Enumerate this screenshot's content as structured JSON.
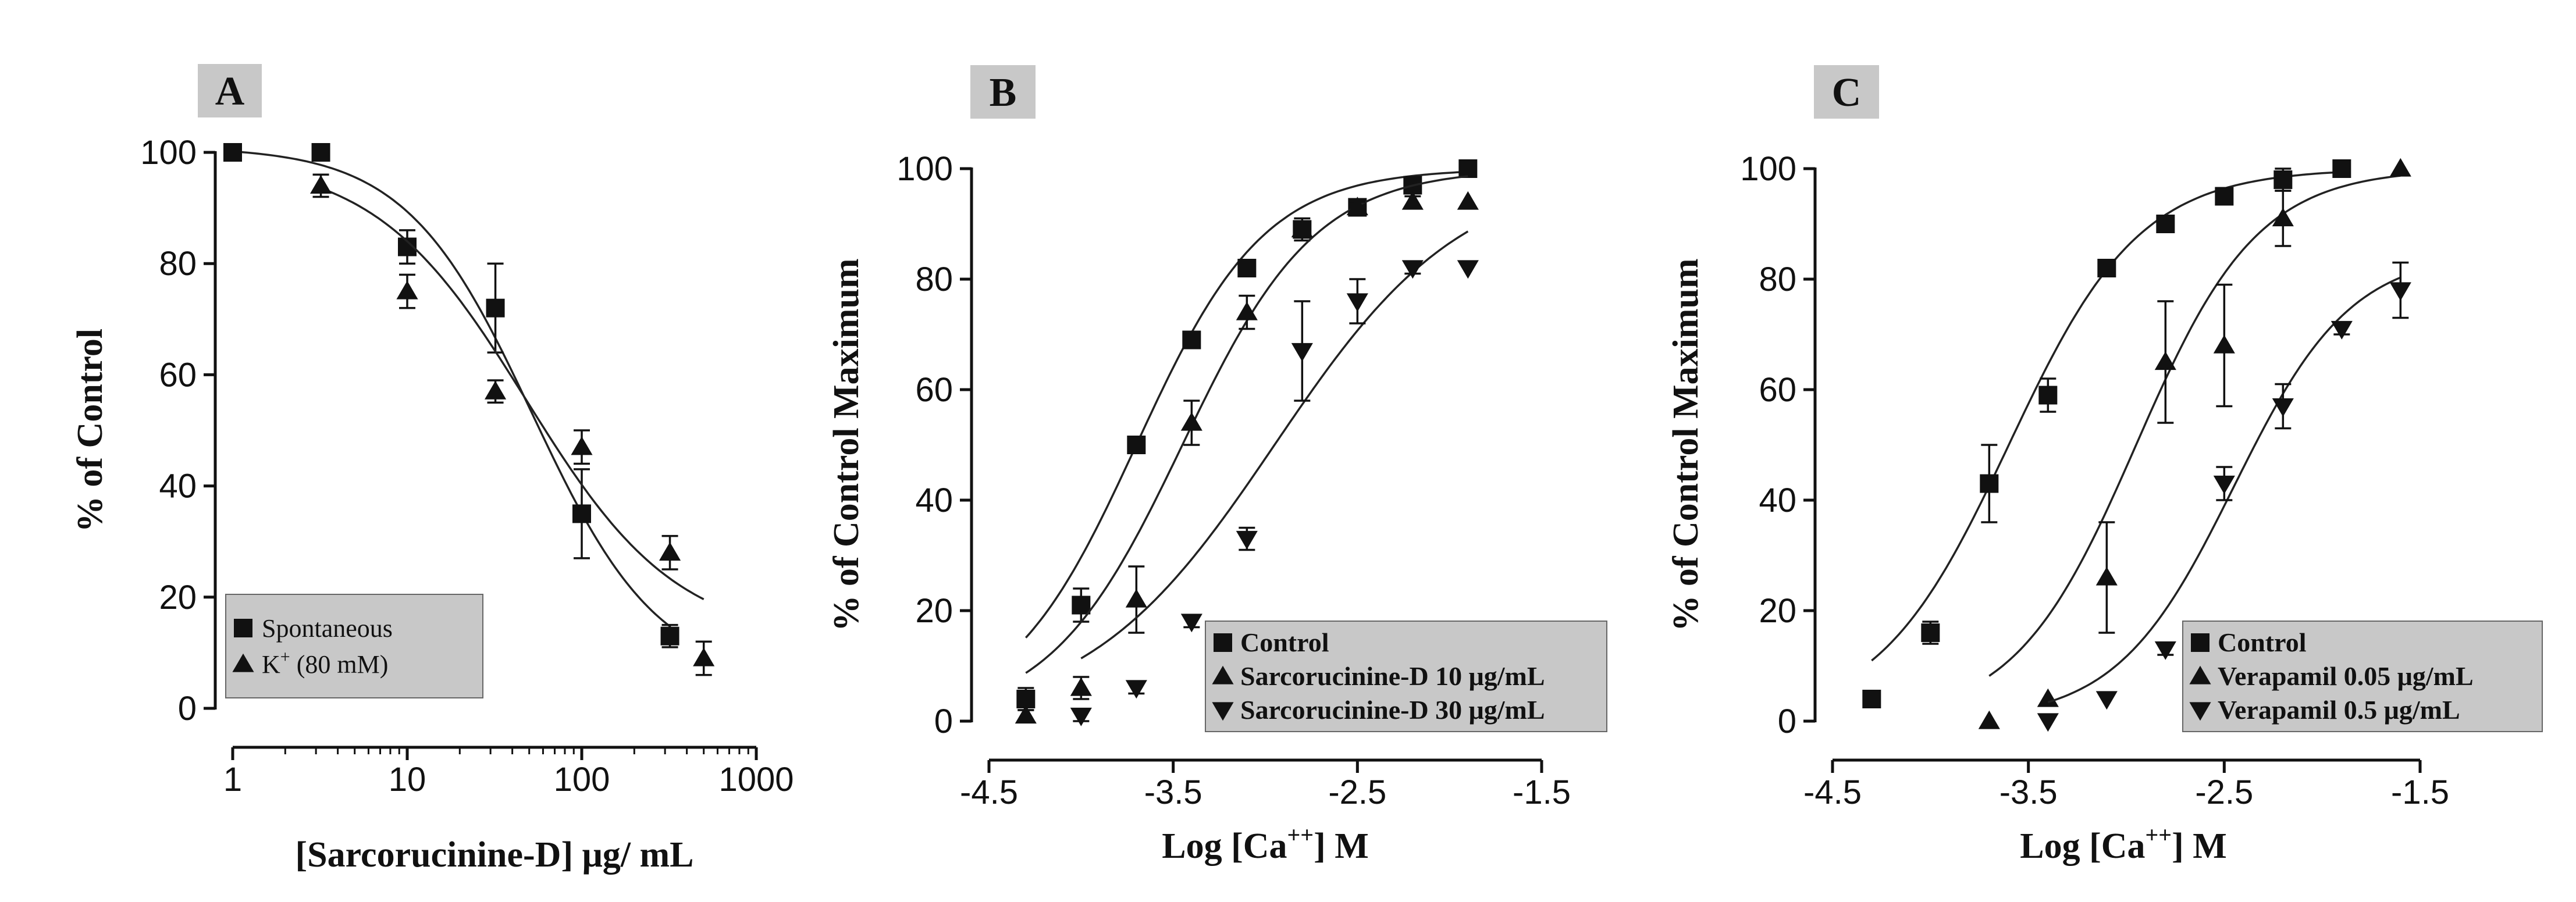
{
  "chart_data": [
    {
      "type": "scatter",
      "panel_label": "A",
      "xscale": "log",
      "xlim": [
        1,
        1000
      ],
      "ylim": [
        0,
        100
      ],
      "xticks": [
        1,
        10,
        100,
        1000
      ],
      "xtick_labels": [
        "1",
        "10",
        "100",
        "1000"
      ],
      "yticks": [
        0,
        20,
        40,
        60,
        80,
        100
      ],
      "ytick_labels": [
        "0",
        "20",
        "40",
        "60",
        "80",
        "100"
      ],
      "xlabel": "[Sarcorucinine-D] μg/ mL",
      "ylabel": "% of Control",
      "legend_position": "bottom-left",
      "series": [
        {
          "name": "Spontaneous",
          "marker": "square",
          "x": [
            1,
            3.2,
            10,
            32,
            100,
            320
          ],
          "y": [
            100,
            100,
            83,
            72,
            35,
            13
          ],
          "err": [
            0,
            0,
            3,
            8,
            8,
            2
          ],
          "fit": {
            "bottom": 5,
            "top": 101,
            "ec50": 52,
            "hill": 1.2
          }
        },
        {
          "name": "K",
          "name_sup": "+",
          "name_rest": " (80 mM)",
          "marker": "triangle-up",
          "x": [
            3.2,
            10,
            32,
            100,
            320,
            500
          ],
          "y": [
            94,
            75,
            57,
            47,
            28,
            9
          ],
          "err": [
            2,
            3,
            2,
            3,
            3,
            3
          ],
          "fit": {
            "bottom": 12,
            "top": 99,
            "ec50": 48,
            "hill": 1.0
          }
        }
      ]
    },
    {
      "type": "scatter",
      "panel_label": "B",
      "xlim": [
        -4.5,
        -1.5
      ],
      "ylim": [
        0,
        100
      ],
      "xticks": [
        -4.5,
        -3.5,
        -2.5,
        -1.5
      ],
      "xtick_labels": [
        "-4.5",
        "-3.5",
        "-2.5",
        "-1.5"
      ],
      "yticks": [
        0,
        20,
        40,
        60,
        80,
        100
      ],
      "ytick_labels": [
        "0",
        "20",
        "40",
        "60",
        "80",
        "100"
      ],
      "xlabel_main": "Log [Ca",
      "xlabel_sup": "++",
      "xlabel_rest": "] M",
      "ylabel": "% of Control Maximum",
      "legend_position": "bottom-right",
      "series": [
        {
          "name": "Control",
          "marker": "square",
          "x": [
            -4.3,
            -4.0,
            -3.7,
            -3.4,
            -3.1,
            -2.8,
            -2.5,
            -2.2,
            -1.9
          ],
          "y": [
            4,
            21,
            50,
            69,
            82,
            89,
            93,
            97,
            100
          ],
          "err": [
            2,
            3,
            1,
            1,
            1,
            2,
            1,
            1,
            0
          ],
          "fit": {
            "bottom": 0,
            "top": 100,
            "logec50": -3.7,
            "hill": 1.25
          }
        },
        {
          "name": "Sarcorucinine-D 10 μg/mL",
          "marker": "triangle-up",
          "x": [
            -4.3,
            -4.0,
            -3.7,
            -3.4,
            -3.1,
            -2.8,
            -2.5,
            -2.2,
            -1.9
          ],
          "y": [
            1,
            6,
            22,
            54,
            74,
            89,
            93,
            94,
            94
          ],
          "err": [
            1,
            2,
            6,
            4,
            3,
            1,
            1,
            1,
            0
          ],
          "fit": {
            "bottom": 0,
            "top": 100,
            "logec50": -3.45,
            "hill": 1.2
          }
        },
        {
          "name": "Sarcorucinine-D 30 μg/mL",
          "marker": "triangle-down",
          "x": [
            -4.0,
            -3.7,
            -3.4,
            -3.1,
            -2.8,
            -2.5,
            -2.2,
            -1.9
          ],
          "y": [
            1,
            6,
            18,
            33,
            67,
            76,
            82,
            82
          ],
          "err": [
            1,
            1,
            1,
            2,
            9,
            4,
            1,
            0
          ],
          "fit": {
            "bottom": 0,
            "top": 100,
            "logec50": -2.95,
            "hill": 0.85
          }
        }
      ]
    },
    {
      "type": "scatter",
      "panel_label": "C",
      "xlim": [
        -4.5,
        -1.5
      ],
      "ylim": [
        0,
        100
      ],
      "xticks": [
        -4.5,
        -3.5,
        -2.5,
        -1.5
      ],
      "xtick_labels": [
        "-4.5",
        "-3.5",
        "-2.5",
        "-1.5"
      ],
      "yticks": [
        0,
        20,
        40,
        60,
        80,
        100
      ],
      "ytick_labels": [
        "0",
        "20",
        "40",
        "60",
        "80",
        "100"
      ],
      "xlabel_main": "Log [Ca",
      "xlabel_sup": "++",
      "xlabel_rest": "] M",
      "ylabel": "% of Control Maximum",
      "legend_position": "bottom-right",
      "series": [
        {
          "name": "Control",
          "marker": "square",
          "x": [
            -4.3,
            -4.0,
            -3.7,
            -3.4,
            -3.1,
            -2.8,
            -2.5,
            -2.2,
            -1.9
          ],
          "y": [
            4,
            16,
            43,
            59,
            82,
            90,
            95,
            98,
            100
          ],
          "err": [
            1,
            2,
            7,
            3,
            1,
            1,
            1,
            2,
            0
          ],
          "fit": {
            "bottom": 0,
            "top": 100,
            "logec50": -3.6,
            "hill": 1.3
          }
        },
        {
          "name": "Verapamil 0.05 μg/mL",
          "marker": "triangle-up",
          "x": [
            -3.7,
            -3.4,
            -3.1,
            -2.8,
            -2.5,
            -2.2,
            -1.6
          ],
          "y": [
            0,
            4,
            26,
            65,
            68,
            91,
            100
          ],
          "err": [
            0,
            0,
            10,
            11,
            11,
            5,
            0
          ],
          "fit": {
            "bottom": 0,
            "top": 100,
            "logec50": -2.95,
            "hill": 1.4
          }
        },
        {
          "name": "Verapamil 0.5 μg/mL",
          "marker": "triangle-down",
          "x": [
            -3.4,
            -3.1,
            -2.8,
            -2.5,
            -2.2,
            -1.9,
            -1.6
          ],
          "y": [
            0,
            4,
            13,
            43,
            57,
            71,
            78
          ],
          "err": [
            0,
            0,
            1,
            3,
            4,
            1,
            5
          ],
          "fit": {
            "bottom": 0,
            "top": 85,
            "logec50": -2.45,
            "hill": 1.45
          }
        }
      ]
    }
  ]
}
